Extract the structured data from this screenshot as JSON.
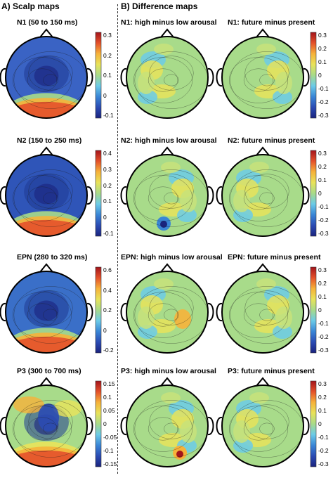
{
  "sections": {
    "scalp": "A) Scalp maps",
    "difference": "B) Difference maps"
  },
  "colormap": [
    "#1a237e",
    "#2b4bb3",
    "#3a86d6",
    "#6ccbe8",
    "#a8db8a",
    "#e8e35a",
    "#f6b23a",
    "#e4512b",
    "#a3141b"
  ],
  "rows": [
    {
      "scalp": {
        "title": "N1 (50 to 150 ms)",
        "ticks": [
          "0.3",
          "0.2",
          "0.1",
          "0",
          "-0.1"
        ],
        "mean_color": "#3a63c4",
        "hot": [
          "#e4512b",
          "#f6b23a",
          "#a8db8a"
        ]
      },
      "diff1": {
        "title": "N1: high minus low arousal"
      },
      "diff2": {
        "title": "N1: future minus present",
        "ticks": [
          "0.3",
          "0.2",
          "0.1",
          "0",
          "-0.1",
          "-0.2",
          "-0.3"
        ]
      }
    },
    {
      "scalp": {
        "title": "N2 (150 to 250 ms)",
        "ticks": [
          "0.4",
          "0.3",
          "0.2",
          "0.1",
          "0",
          "-0.1"
        ],
        "mean_color": "#2f55b8",
        "hot": [
          "#e4512b",
          "#f6b23a",
          "#a8db8a"
        ]
      },
      "diff1": {
        "title": "N2: high minus low arousal"
      },
      "diff2": {
        "title": "N2: future minus present",
        "ticks": [
          "0.3",
          "0.2",
          "0.1",
          "0",
          "-0.1",
          "-0.2",
          "-0.3"
        ]
      }
    },
    {
      "scalp": {
        "title": "EPN (280 to 320 ms)",
        "ticks": [
          "0.6",
          "0.4",
          "0.2",
          "0",
          "-0.2"
        ],
        "mean_color": "#3a6fc8",
        "hot": [
          "#e4512b",
          "#f6b23a",
          "#a8db8a"
        ]
      },
      "diff1": {
        "title": "EPN: high minus low arousal"
      },
      "diff2": {
        "title": "EPN: future minus present",
        "ticks": [
          "0.3",
          "0.2",
          "0.1",
          "0",
          "-0.1",
          "-0.2",
          "-0.3"
        ]
      }
    },
    {
      "scalp": {
        "title": "P3 (300 to 700 ms)",
        "ticks": [
          "0.15",
          "0.1",
          "0.05",
          "0",
          "-0.05",
          "-0.1",
          "-0.15"
        ],
        "mean_color": "#a8db8a",
        "hot": [
          "#e4512b",
          "#f6b23a",
          "#e8e35a"
        ]
      },
      "diff1": {
        "title": "P3: high minus low arousal"
      },
      "diff2": {
        "title": "P3: future minus present",
        "ticks": [
          "0.3",
          "0.2",
          "0.1",
          "0",
          "-0.1",
          "-0.2",
          "-0.3"
        ]
      }
    }
  ]
}
